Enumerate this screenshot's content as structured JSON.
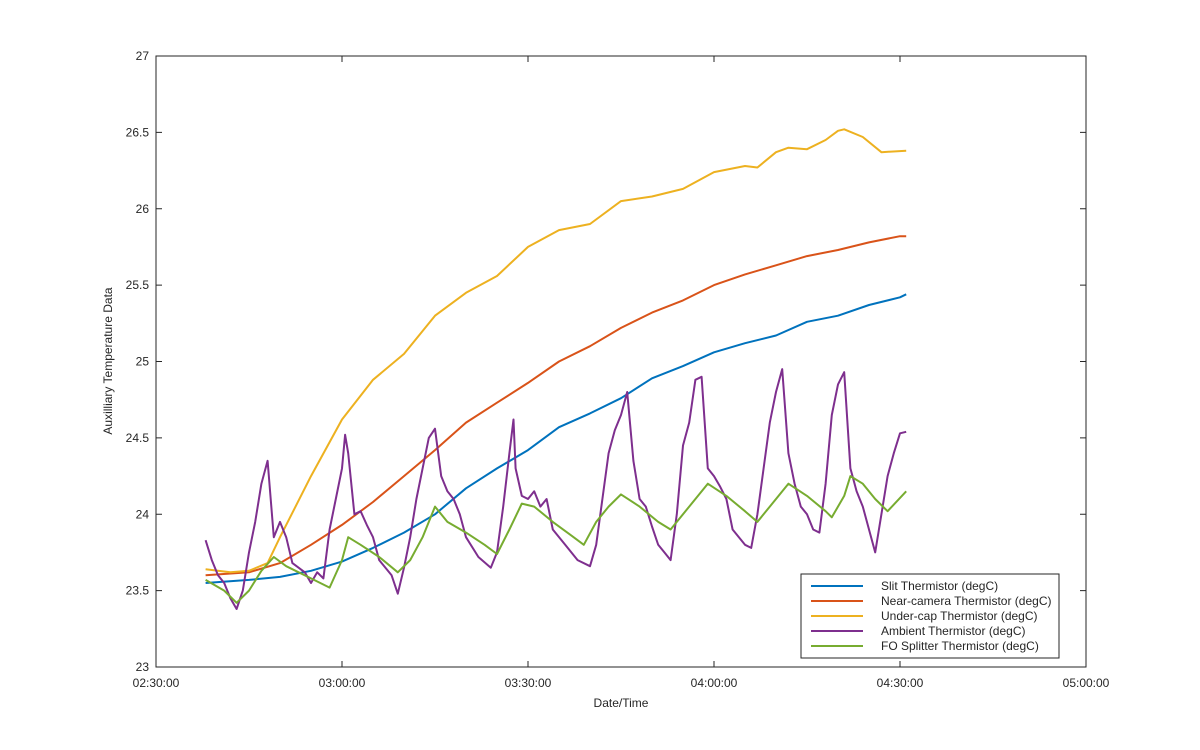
{
  "chart_data": {
    "type": "line",
    "xlabel": "Date/Time",
    "ylabel": "Auxilliary Temperature Data",
    "x_unit": "time of day (HH:MM:SS)",
    "xlim": [
      "02:30:00",
      "05:00:00"
    ],
    "ylim": [
      23,
      27
    ],
    "x_ticks": [
      "02:30:00",
      "03:00:00",
      "03:30:00",
      "04:00:00",
      "04:30:00",
      "05:00:00"
    ],
    "y_ticks": [
      "23",
      "23.5",
      "24",
      "24.5",
      "25",
      "25.5",
      "26",
      "26.5",
      "27"
    ],
    "grid": false,
    "legend_position": "bottom-right",
    "series": [
      {
        "name": "Slit Thermistor (degC)",
        "color": "#0072BD",
        "points": [
          [
            "02:38:00",
            23.55
          ],
          [
            "02:45:00",
            23.57
          ],
          [
            "02:50:00",
            23.59
          ],
          [
            "02:55:00",
            23.63
          ],
          [
            "03:00:00",
            23.69
          ],
          [
            "03:05:00",
            23.78
          ],
          [
            "03:10:00",
            23.88
          ],
          [
            "03:15:00",
            24.0
          ],
          [
            "03:20:00",
            24.17
          ],
          [
            "03:25:00",
            24.3
          ],
          [
            "03:30:00",
            24.42
          ],
          [
            "03:35:00",
            24.57
          ],
          [
            "03:40:00",
            24.66
          ],
          [
            "03:45:00",
            24.76
          ],
          [
            "03:50:00",
            24.89
          ],
          [
            "03:55:00",
            24.97
          ],
          [
            "04:00:00",
            25.06
          ],
          [
            "04:05:00",
            25.12
          ],
          [
            "04:10:00",
            25.17
          ],
          [
            "04:15:00",
            25.26
          ],
          [
            "04:20:00",
            25.3
          ],
          [
            "04:25:00",
            25.37
          ],
          [
            "04:30:00",
            25.42
          ],
          [
            "04:31:00",
            25.44
          ]
        ]
      },
      {
        "name": "Near-camera Thermistor (degC)",
        "color": "#D95319",
        "points": [
          [
            "02:38:00",
            23.6
          ],
          [
            "02:45:00",
            23.62
          ],
          [
            "02:50:00",
            23.68
          ],
          [
            "02:55:00",
            23.8
          ],
          [
            "03:00:00",
            23.93
          ],
          [
            "03:05:00",
            24.08
          ],
          [
            "03:10:00",
            24.25
          ],
          [
            "03:15:00",
            24.42
          ],
          [
            "03:20:00",
            24.6
          ],
          [
            "03:25:00",
            24.73
          ],
          [
            "03:30:00",
            24.86
          ],
          [
            "03:35:00",
            25.0
          ],
          [
            "03:40:00",
            25.1
          ],
          [
            "03:45:00",
            25.22
          ],
          [
            "03:50:00",
            25.32
          ],
          [
            "03:55:00",
            25.4
          ],
          [
            "04:00:00",
            25.5
          ],
          [
            "04:05:00",
            25.57
          ],
          [
            "04:10:00",
            25.63
          ],
          [
            "04:15:00",
            25.69
          ],
          [
            "04:20:00",
            25.73
          ],
          [
            "04:25:00",
            25.78
          ],
          [
            "04:30:00",
            25.82
          ],
          [
            "04:31:00",
            25.82
          ]
        ]
      },
      {
        "name": "Under-cap Thermistor (degC)",
        "color": "#EDB120",
        "points": [
          [
            "02:38:00",
            23.64
          ],
          [
            "02:42:00",
            23.62
          ],
          [
            "02:45:00",
            23.63
          ],
          [
            "02:48:00",
            23.68
          ],
          [
            "02:50:00",
            23.85
          ],
          [
            "02:55:00",
            24.25
          ],
          [
            "03:00:00",
            24.62
          ],
          [
            "03:05:00",
            24.88
          ],
          [
            "03:10:00",
            25.05
          ],
          [
            "03:15:00",
            25.3
          ],
          [
            "03:20:00",
            25.45
          ],
          [
            "03:25:00",
            25.56
          ],
          [
            "03:30:00",
            25.75
          ],
          [
            "03:35:00",
            25.86
          ],
          [
            "03:40:00",
            25.9
          ],
          [
            "03:45:00",
            26.05
          ],
          [
            "03:50:00",
            26.08
          ],
          [
            "03:55:00",
            26.13
          ],
          [
            "04:00:00",
            26.24
          ],
          [
            "04:05:00",
            26.28
          ],
          [
            "04:07:00",
            26.27
          ],
          [
            "04:10:00",
            26.37
          ],
          [
            "04:12:00",
            26.4
          ],
          [
            "04:15:00",
            26.39
          ],
          [
            "04:18:00",
            26.45
          ],
          [
            "04:20:00",
            26.51
          ],
          [
            "04:21:00",
            26.52
          ],
          [
            "04:24:00",
            26.47
          ],
          [
            "04:27:00",
            26.37
          ],
          [
            "04:31:00",
            26.38
          ]
        ]
      },
      {
        "name": "Ambient Thermistor (degC)",
        "color": "#7E2F8E",
        "points": [
          [
            "02:38:00",
            23.83
          ],
          [
            "02:39:00",
            23.7
          ],
          [
            "02:40:00",
            23.6
          ],
          [
            "02:41:00",
            23.55
          ],
          [
            "02:42:00",
            23.45
          ],
          [
            "02:43:00",
            23.38
          ],
          [
            "02:44:00",
            23.5
          ],
          [
            "02:45:00",
            23.75
          ],
          [
            "02:46:00",
            23.95
          ],
          [
            "02:47:00",
            24.2
          ],
          [
            "02:48:00",
            24.35
          ],
          [
            "02:49:00",
            23.85
          ],
          [
            "02:50:00",
            23.95
          ],
          [
            "02:51:00",
            23.85
          ],
          [
            "02:52:00",
            23.68
          ],
          [
            "02:54:00",
            23.62
          ],
          [
            "02:55:00",
            23.55
          ],
          [
            "02:56:00",
            23.62
          ],
          [
            "02:57:00",
            23.58
          ],
          [
            "02:58:00",
            23.9
          ],
          [
            "02:59:00",
            24.1
          ],
          [
            "03:00:00",
            24.3
          ],
          [
            "03:00:30",
            24.52
          ],
          [
            "03:01:00",
            24.4
          ],
          [
            "03:02:00",
            24.0
          ],
          [
            "03:03:00",
            24.02
          ],
          [
            "03:04:00",
            23.93
          ],
          [
            "03:05:00",
            23.85
          ],
          [
            "03:06:00",
            23.7
          ],
          [
            "03:08:00",
            23.6
          ],
          [
            "03:09:00",
            23.48
          ],
          [
            "03:10:00",
            23.65
          ],
          [
            "03:11:00",
            23.85
          ],
          [
            "03:12:00",
            24.1
          ],
          [
            "03:13:00",
            24.3
          ],
          [
            "03:14:00",
            24.5
          ],
          [
            "03:15:00",
            24.56
          ],
          [
            "03:16:00",
            24.25
          ],
          [
            "03:17:00",
            24.15
          ],
          [
            "03:18:00",
            24.1
          ],
          [
            "03:19:00",
            24.0
          ],
          [
            "03:20:00",
            23.85
          ],
          [
            "03:22:00",
            23.72
          ],
          [
            "03:24:00",
            23.65
          ],
          [
            "03:25:00",
            23.75
          ],
          [
            "03:26:00",
            24.05
          ],
          [
            "03:27:00",
            24.4
          ],
          [
            "03:27:40",
            24.62
          ],
          [
            "03:28:00",
            24.3
          ],
          [
            "03:29:00",
            24.12
          ],
          [
            "03:30:00",
            24.1
          ],
          [
            "03:31:00",
            24.15
          ],
          [
            "03:32:00",
            24.05
          ],
          [
            "03:33:00",
            24.1
          ],
          [
            "03:34:00",
            23.9
          ],
          [
            "03:36:00",
            23.8
          ],
          [
            "03:38:00",
            23.7
          ],
          [
            "03:40:00",
            23.66
          ],
          [
            "03:41:00",
            23.8
          ],
          [
            "03:42:00",
            24.1
          ],
          [
            "03:43:00",
            24.4
          ],
          [
            "03:44:00",
            24.55
          ],
          [
            "03:45:00",
            24.65
          ],
          [
            "03:46:00",
            24.8
          ],
          [
            "03:47:00",
            24.35
          ],
          [
            "03:48:00",
            24.1
          ],
          [
            "03:49:00",
            24.05
          ],
          [
            "03:50:00",
            23.92
          ],
          [
            "03:51:00",
            23.8
          ],
          [
            "03:52:00",
            23.75
          ],
          [
            "03:53:00",
            23.7
          ],
          [
            "03:54:00",
            24.0
          ],
          [
            "03:55:00",
            24.45
          ],
          [
            "03:56:00",
            24.6
          ],
          [
            "03:57:00",
            24.88
          ],
          [
            "03:58:00",
            24.9
          ],
          [
            "03:59:00",
            24.3
          ],
          [
            "04:00:00",
            24.25
          ],
          [
            "04:01:00",
            24.18
          ],
          [
            "04:02:00",
            24.1
          ],
          [
            "04:03:00",
            23.9
          ],
          [
            "04:05:00",
            23.8
          ],
          [
            "04:06:00",
            23.78
          ],
          [
            "04:07:00",
            24.0
          ],
          [
            "04:08:00",
            24.3
          ],
          [
            "04:09:00",
            24.6
          ],
          [
            "04:10:00",
            24.8
          ],
          [
            "04:11:00",
            24.95
          ],
          [
            "04:12:00",
            24.4
          ],
          [
            "04:13:00",
            24.2
          ],
          [
            "04:14:00",
            24.05
          ],
          [
            "04:15:00",
            24.0
          ],
          [
            "04:16:00",
            23.9
          ],
          [
            "04:17:00",
            23.88
          ],
          [
            "04:18:00",
            24.2
          ],
          [
            "04:19:00",
            24.65
          ],
          [
            "04:20:00",
            24.85
          ],
          [
            "04:21:00",
            24.93
          ],
          [
            "04:22:00",
            24.3
          ],
          [
            "04:23:00",
            24.15
          ],
          [
            "04:24:00",
            24.05
          ],
          [
            "04:25:00",
            23.9
          ],
          [
            "04:26:00",
            23.75
          ],
          [
            "04:27:00",
            24.0
          ],
          [
            "04:28:00",
            24.25
          ],
          [
            "04:29:00",
            24.4
          ],
          [
            "04:30:00",
            24.53
          ],
          [
            "04:31:00",
            24.54
          ]
        ]
      },
      {
        "name": "FO Splitter Thermistor (degC)",
        "color": "#77AC30",
        "points": [
          [
            "02:38:00",
            23.57
          ],
          [
            "02:41:00",
            23.5
          ],
          [
            "02:43:00",
            23.42
          ],
          [
            "02:45:00",
            23.5
          ],
          [
            "02:47:00",
            23.63
          ],
          [
            "02:49:00",
            23.72
          ],
          [
            "02:51:00",
            23.66
          ],
          [
            "02:55:00",
            23.58
          ],
          [
            "02:58:00",
            23.52
          ],
          [
            "03:00:00",
            23.7
          ],
          [
            "03:01:00",
            23.85
          ],
          [
            "03:03:00",
            23.8
          ],
          [
            "03:06:00",
            23.72
          ],
          [
            "03:09:00",
            23.62
          ],
          [
            "03:11:00",
            23.7
          ],
          [
            "03:13:00",
            23.85
          ],
          [
            "03:15:00",
            24.05
          ],
          [
            "03:17:00",
            23.95
          ],
          [
            "03:20:00",
            23.88
          ],
          [
            "03:23:00",
            23.8
          ],
          [
            "03:25:00",
            23.74
          ],
          [
            "03:27:00",
            23.9
          ],
          [
            "03:29:00",
            24.07
          ],
          [
            "03:31:00",
            24.05
          ],
          [
            "03:34:00",
            23.95
          ],
          [
            "03:37:00",
            23.86
          ],
          [
            "03:39:00",
            23.8
          ],
          [
            "03:41:00",
            23.95
          ],
          [
            "03:43:00",
            24.05
          ],
          [
            "03:45:00",
            24.13
          ],
          [
            "03:48:00",
            24.05
          ],
          [
            "03:51:00",
            23.95
          ],
          [
            "03:53:00",
            23.9
          ],
          [
            "03:56:00",
            24.05
          ],
          [
            "03:59:00",
            24.2
          ],
          [
            "04:02:00",
            24.12
          ],
          [
            "04:05:00",
            24.02
          ],
          [
            "04:07:00",
            23.95
          ],
          [
            "04:09:00",
            24.05
          ],
          [
            "04:12:00",
            24.2
          ],
          [
            "04:15:00",
            24.12
          ],
          [
            "04:18:00",
            24.02
          ],
          [
            "04:19:00",
            23.98
          ],
          [
            "04:21:00",
            24.12
          ],
          [
            "04:22:00",
            24.25
          ],
          [
            "04:24:00",
            24.2
          ],
          [
            "04:26:00",
            24.1
          ],
          [
            "04:28:00",
            24.02
          ],
          [
            "04:31:00",
            24.15
          ]
        ]
      }
    ]
  }
}
